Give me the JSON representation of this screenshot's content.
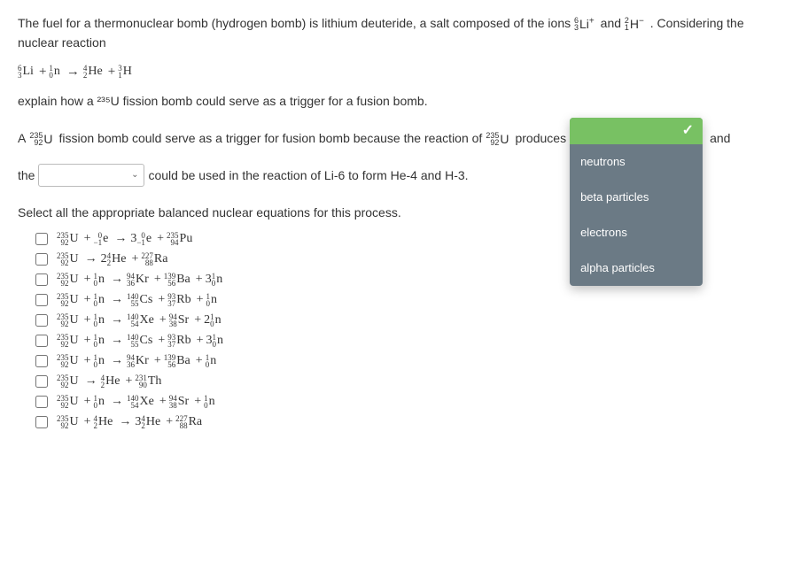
{
  "intro": {
    "part1": "The fuel for a thermonuclear bomb (hydrogen bomb) is lithium deuteride, a salt composed of the ions ",
    "li_ion": {
      "mass": "6",
      "z": "3",
      "sym": "Li",
      "charge": "+"
    },
    "and": " and ",
    "h_ion": {
      "mass": "2",
      "z": "1",
      "sym": "H",
      "charge": "−"
    },
    "part2": " . Considering the nuclear reaction"
  },
  "reaction": {
    "species": [
      {
        "mass": "6",
        "z": "3",
        "sym": "Li"
      },
      {
        "op": "+"
      },
      {
        "mass": "1",
        "z": "0",
        "sym": "n"
      },
      {
        "op": "→"
      },
      {
        "mass": "4",
        "z": "2",
        "sym": "He"
      },
      {
        "op": "+"
      },
      {
        "mass": "3",
        "z": "1",
        "sym": "H"
      }
    ]
  },
  "explain": "explain how a ²³⁵U fission bomb could serve as a trigger for a fusion bomb.",
  "fill": {
    "a1": "A ",
    "u235": {
      "mass": "235",
      "z": "92",
      "sym": "U"
    },
    "a2": " fission bomb could serve as a trigger for fusion bomb because the reaction of ",
    "a3": " produces",
    "tail": "and",
    "b1": "the ",
    "b2": " could be used in the reaction of Li-6 to form He-4 and H-3."
  },
  "dropdown": {
    "options": [
      "neutrons",
      "beta particles",
      "electrons",
      "alpha particles"
    ]
  },
  "select_label": "Select all the appropriate balanced nuclear equations for this process.",
  "equations": [
    [
      {
        "mass": "235",
        "z": "92",
        "sym": "U"
      },
      {
        "op": "+"
      },
      {
        "mass": "0",
        "z": "−1",
        "sym": "e"
      },
      {
        "op": "→"
      },
      {
        "coef": "3"
      },
      {
        "mass": "0",
        "z": "−1",
        "sym": "e"
      },
      {
        "op": "+"
      },
      {
        "mass": "235",
        "z": "94",
        "sym": "Pu"
      }
    ],
    [
      {
        "mass": "235",
        "z": "92",
        "sym": "U"
      },
      {
        "op": "→"
      },
      {
        "coef": "2"
      },
      {
        "mass": "4",
        "z": "2",
        "sym": "He"
      },
      {
        "op": "+"
      },
      {
        "mass": "227",
        "z": "88",
        "sym": "Ra"
      }
    ],
    [
      {
        "mass": "235",
        "z": "92",
        "sym": "U"
      },
      {
        "op": "+"
      },
      {
        "mass": "1",
        "z": "0",
        "sym": "n"
      },
      {
        "op": "→"
      },
      {
        "mass": "94",
        "z": "36",
        "sym": "Kr"
      },
      {
        "op": "+"
      },
      {
        "mass": "139",
        "z": "56",
        "sym": "Ba"
      },
      {
        "op": "+"
      },
      {
        "coef": "3"
      },
      {
        "mass": "1",
        "z": "0",
        "sym": "n"
      }
    ],
    [
      {
        "mass": "235",
        "z": "92",
        "sym": "U"
      },
      {
        "op": "+"
      },
      {
        "mass": "1",
        "z": "0",
        "sym": "n"
      },
      {
        "op": "→"
      },
      {
        "mass": "140",
        "z": "55",
        "sym": "Cs"
      },
      {
        "op": "+"
      },
      {
        "mass": "93",
        "z": "37",
        "sym": "Rb"
      },
      {
        "op": "+"
      },
      {
        "mass": "1",
        "z": "0",
        "sym": "n"
      }
    ],
    [
      {
        "mass": "235",
        "z": "92",
        "sym": "U"
      },
      {
        "op": "+"
      },
      {
        "mass": "1",
        "z": "0",
        "sym": "n"
      },
      {
        "op": "→"
      },
      {
        "mass": "140",
        "z": "54",
        "sym": "Xe"
      },
      {
        "op": "+"
      },
      {
        "mass": "94",
        "z": "38",
        "sym": "Sr"
      },
      {
        "op": "+"
      },
      {
        "coef": "2"
      },
      {
        "mass": "1",
        "z": "0",
        "sym": "n"
      }
    ],
    [
      {
        "mass": "235",
        "z": "92",
        "sym": "U"
      },
      {
        "op": "+"
      },
      {
        "mass": "1",
        "z": "0",
        "sym": "n"
      },
      {
        "op": "→"
      },
      {
        "mass": "140",
        "z": "55",
        "sym": "Cs"
      },
      {
        "op": "+"
      },
      {
        "mass": "93",
        "z": "37",
        "sym": "Rb"
      },
      {
        "op": "+"
      },
      {
        "coef": "3"
      },
      {
        "mass": "1",
        "z": "0",
        "sym": "n"
      }
    ],
    [
      {
        "mass": "235",
        "z": "92",
        "sym": "U"
      },
      {
        "op": "+"
      },
      {
        "mass": "1",
        "z": "0",
        "sym": "n"
      },
      {
        "op": "→"
      },
      {
        "mass": "94",
        "z": "36",
        "sym": "Kr"
      },
      {
        "op": "+"
      },
      {
        "mass": "139",
        "z": "56",
        "sym": "Ba"
      },
      {
        "op": "+"
      },
      {
        "mass": "1",
        "z": "0",
        "sym": "n"
      }
    ],
    [
      {
        "mass": "235",
        "z": "92",
        "sym": "U"
      },
      {
        "op": "→"
      },
      {
        "mass": "4",
        "z": "2",
        "sym": "He"
      },
      {
        "op": "+"
      },
      {
        "mass": "231",
        "z": "90",
        "sym": "Th"
      }
    ],
    [
      {
        "mass": "235",
        "z": "92",
        "sym": "U"
      },
      {
        "op": "+"
      },
      {
        "mass": "1",
        "z": "0",
        "sym": "n"
      },
      {
        "op": "→"
      },
      {
        "mass": "140",
        "z": "54",
        "sym": "Xe"
      },
      {
        "op": "+"
      },
      {
        "mass": "94",
        "z": "38",
        "sym": "Sr"
      },
      {
        "op": "+"
      },
      {
        "mass": "1",
        "z": "0",
        "sym": "n"
      }
    ],
    [
      {
        "mass": "235",
        "z": "92",
        "sym": "U"
      },
      {
        "op": "+"
      },
      {
        "mass": "4",
        "z": "2",
        "sym": "He"
      },
      {
        "op": "→"
      },
      {
        "coef": "3"
      },
      {
        "mass": "4",
        "z": "2",
        "sym": "He"
      },
      {
        "op": "+"
      },
      {
        "mass": "227",
        "z": "88",
        "sym": "Ra"
      }
    ]
  ]
}
